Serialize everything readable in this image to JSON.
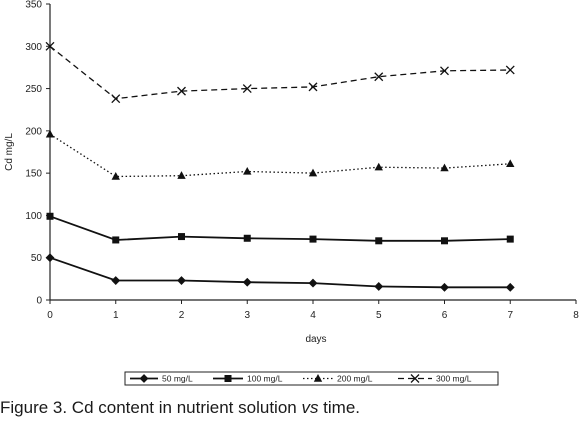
{
  "chart_data": {
    "type": "line",
    "xlabel": "days",
    "ylabel": "Cd mg/L",
    "xlim": [
      0,
      8
    ],
    "ylim": [
      0,
      350
    ],
    "x_ticks": [
      "0",
      "1",
      "2",
      "3",
      "4",
      "5",
      "6",
      "7",
      "8"
    ],
    "y_ticks": [
      "0",
      "50",
      "100",
      "150",
      "200",
      "250",
      "300",
      "350"
    ],
    "grid": false,
    "legend_position": "bottom",
    "x": [
      0,
      1,
      2,
      3,
      4,
      5,
      6,
      7
    ],
    "series": [
      {
        "name": "50 mg/L",
        "values": [
          50,
          23,
          23,
          21,
          20,
          16,
          15,
          15
        ],
        "marker": "diamond",
        "line_style": "solid"
      },
      {
        "name": "100 mg/L",
        "values": [
          99,
          71,
          75,
          73,
          72,
          70,
          70,
          72
        ],
        "marker": "square",
        "line_style": "solid"
      },
      {
        "name": "200 mg/L",
        "values": [
          196,
          146,
          147,
          152,
          150,
          157,
          156,
          161
        ],
        "marker": "triangle",
        "line_style": "dotted"
      },
      {
        "name": "300 mg/L",
        "values": [
          300,
          238,
          247,
          250,
          252,
          264,
          271,
          272
        ],
        "marker": "x",
        "line_style": "dashed"
      }
    ]
  },
  "caption": {
    "prefix": "Figure 3. Cd content in nutrient solution ",
    "italic": "vs",
    "suffix": " time."
  }
}
